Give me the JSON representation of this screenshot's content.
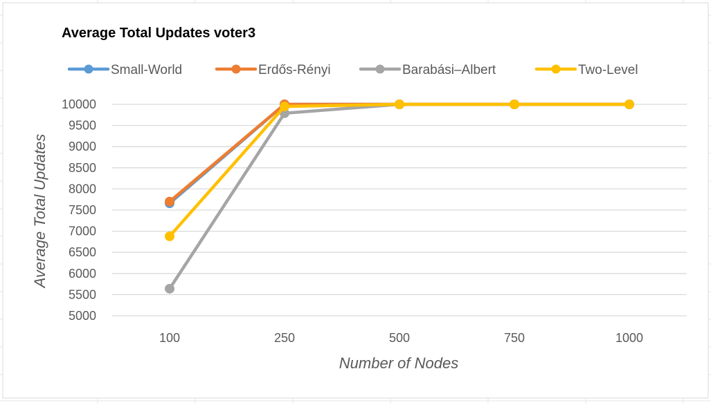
{
  "chart_data": {
    "type": "line",
    "title": "Average Total Updates voter3",
    "xlabel": "Number of Nodes",
    "ylabel": "Average Total Updates",
    "categories": [
      "100",
      "250",
      "500",
      "750",
      "1000"
    ],
    "ylim": [
      5000,
      10000
    ],
    "yticks": [
      "5000",
      "5500",
      "6000",
      "6500",
      "7000",
      "7500",
      "8000",
      "8500",
      "9000",
      "9500",
      "10000"
    ],
    "grid": true,
    "legend_position": "top",
    "series": [
      {
        "name": "Small-World",
        "color": "#5B9BD5",
        "values": [
          7660,
          10000,
          10000,
          10000,
          10000
        ]
      },
      {
        "name": "Erdős-Rényi",
        "color": "#ED7D31",
        "values": [
          7700,
          10000,
          10000,
          10000,
          10000
        ]
      },
      {
        "name": "Barabási–Albert",
        "color": "#A5A5A5",
        "values": [
          5640,
          9790,
          10000,
          10000,
          10000
        ]
      },
      {
        "name": "Two-Level",
        "color": "#FFC000",
        "values": [
          6880,
          9950,
          10000,
          10000,
          10000
        ]
      }
    ]
  }
}
